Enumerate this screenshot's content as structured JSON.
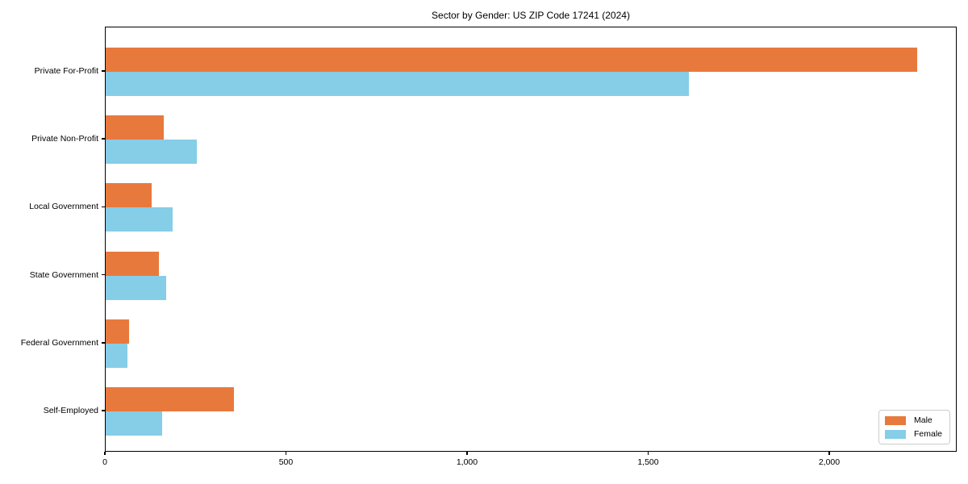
{
  "title": "Sector by Gender: US ZIP Code 17241 (2024)",
  "chart_data": {
    "type": "bar",
    "orientation": "horizontal",
    "title": "Sector by Gender: US ZIP Code 17241 (2024)",
    "categories": [
      "Private For-Profit",
      "Private Non-Profit",
      "Local Government",
      "State Government",
      "Federal Government",
      "Self-Employed"
    ],
    "series": [
      {
        "name": "Male",
        "color": "#E8793D",
        "values": [
          2240,
          160,
          128,
          146,
          65,
          355
        ]
      },
      {
        "name": "Female",
        "color": "#86CDE8",
        "values": [
          1610,
          252,
          184,
          167,
          60,
          157
        ]
      }
    ],
    "xlabel": "",
    "ylabel": "",
    "xlim": [
      0,
      2352
    ],
    "xticks": [
      0,
      500,
      1000,
      1500,
      2000
    ],
    "xtick_labels": [
      "0",
      "500",
      "1,000",
      "1,500",
      "2,000"
    ],
    "grid": false,
    "legend": {
      "position": "lower-right"
    }
  }
}
